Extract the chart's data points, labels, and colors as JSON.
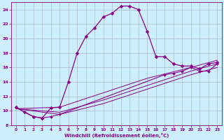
{
  "xlabel": "Windchill (Refroidissement éolien,°C)",
  "bg_color": "#cceeff",
  "line_color": "#880088",
  "grid_color": "#aabbcc",
  "xlim": [
    -0.5,
    23.5
  ],
  "ylim": [
    8,
    25
  ],
  "yticks": [
    8,
    10,
    12,
    14,
    16,
    18,
    20,
    22,
    24
  ],
  "xticks": [
    0,
    1,
    2,
    3,
    4,
    5,
    6,
    7,
    8,
    9,
    10,
    11,
    12,
    13,
    14,
    15,
    16,
    17,
    18,
    19,
    20,
    21,
    22,
    23
  ],
  "curve1_x": [
    0,
    1,
    2,
    3,
    4,
    5,
    6,
    7,
    8,
    9,
    10,
    11,
    12,
    13,
    14,
    15,
    16,
    17,
    18,
    19,
    20,
    21,
    22,
    23
  ],
  "curve1_y": [
    10.5,
    9.8,
    9.2,
    9.0,
    10.4,
    10.5,
    14.0,
    18.0,
    20.3,
    21.5,
    23.0,
    23.5,
    24.5,
    24.5,
    24.0,
    21.0,
    17.5,
    17.5,
    16.5,
    16.2,
    16.2,
    15.8,
    16.5,
    16.7
  ],
  "curve2_x": [
    0,
    2,
    3,
    4,
    5,
    17,
    18,
    19,
    20,
    21,
    22,
    23
  ],
  "curve2_y": [
    10.5,
    9.2,
    9.0,
    9.2,
    9.5,
    15.0,
    15.2,
    15.5,
    16.0,
    15.5,
    15.5,
    16.5
  ],
  "diag1_x": [
    0,
    5,
    10,
    15,
    20,
    23
  ],
  "diag1_y": [
    10.3,
    10.5,
    12.5,
    14.5,
    16.0,
    17.0
  ],
  "diag2_x": [
    0,
    5,
    10,
    15,
    20,
    23
  ],
  "diag2_y": [
    10.3,
    9.8,
    11.5,
    13.5,
    15.5,
    16.5
  ],
  "diag3_x": [
    0,
    5,
    10,
    15,
    20,
    23
  ],
  "diag3_y": [
    10.3,
    9.5,
    11.0,
    13.0,
    15.0,
    16.0
  ]
}
